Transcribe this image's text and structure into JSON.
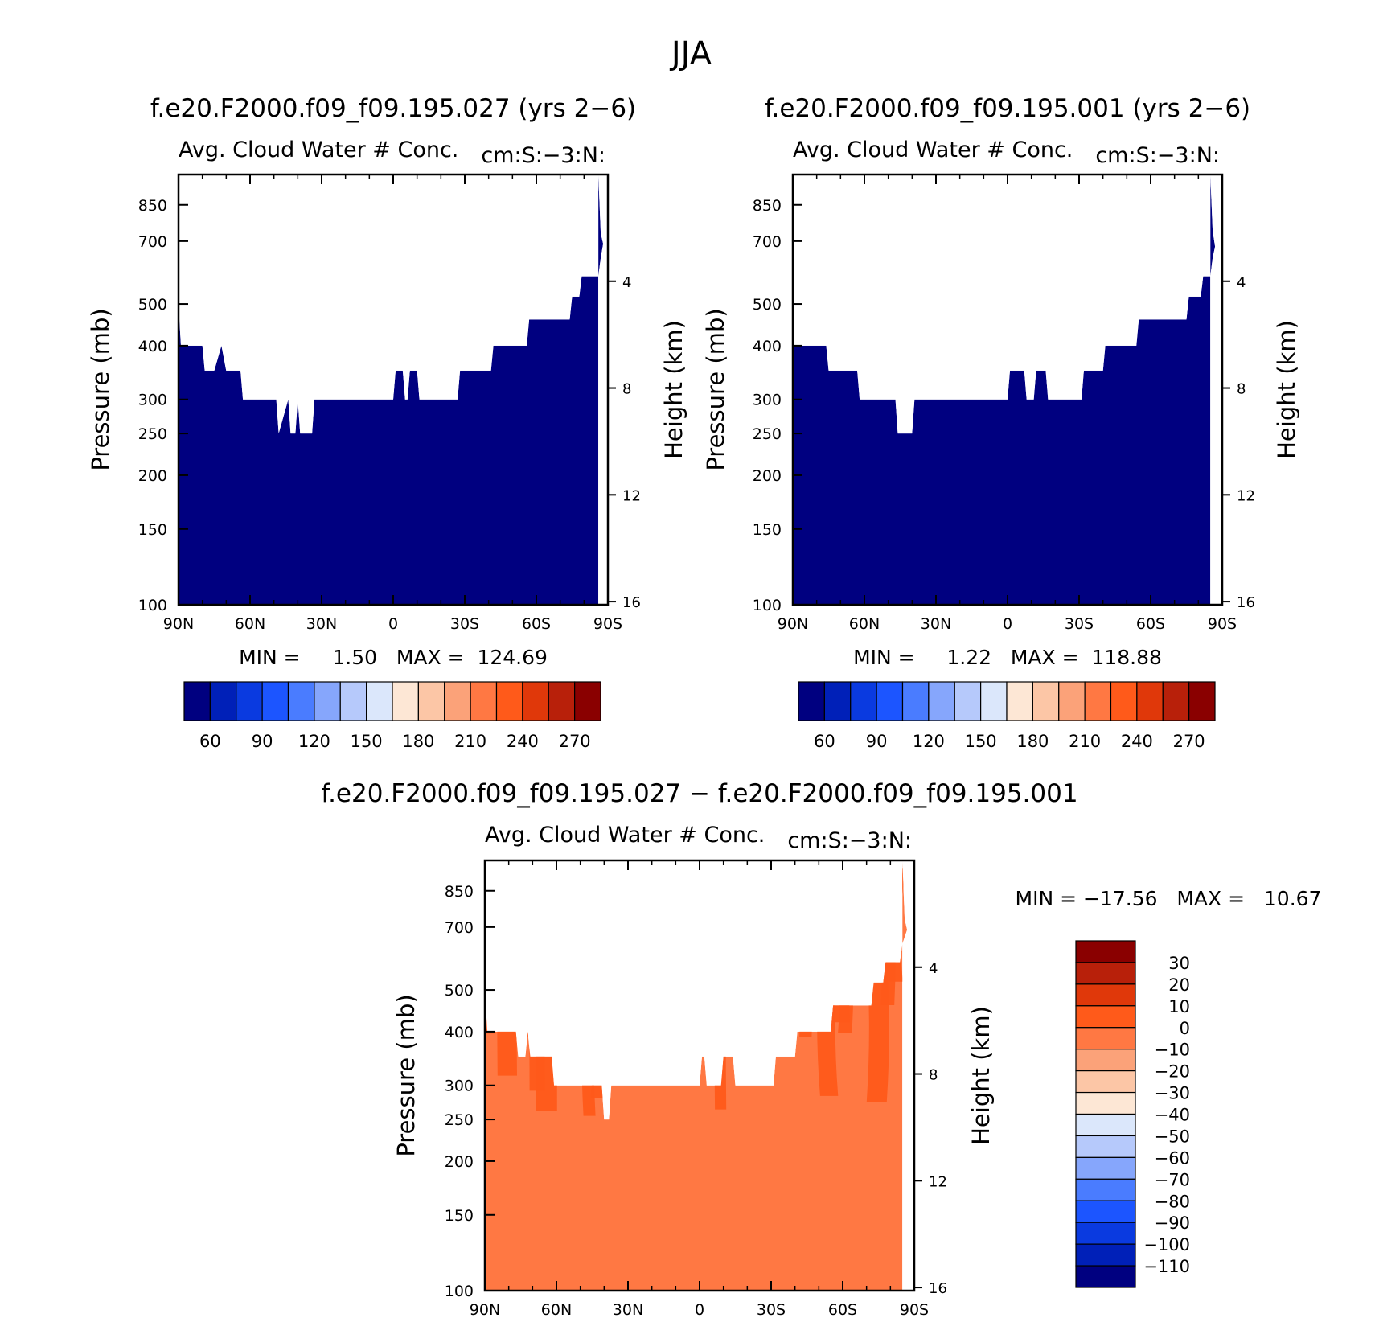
{
  "figure": {
    "title": "JJA"
  },
  "chart_data": [
    {
      "type": "heatmap",
      "title": "f.e20.F2000.f09_f09.195.027 (yrs 2−6)",
      "subtitle_left": "Avg. Cloud Water # Conc.",
      "subtitle_right": "cm:S:−3:N:",
      "ylabel": "Pressure (mb)",
      "ylabel_right": "Height (km)",
      "x_ticks": [
        "90N",
        "60N",
        "30N",
        "0",
        "30S",
        "60S",
        "90S"
      ],
      "y_ticks": [
        "100",
        "150",
        "200",
        "250",
        "300",
        "400",
        "500",
        "700",
        "850"
      ],
      "y_ticks_right": [
        "16",
        "12",
        "8",
        "4"
      ],
      "xlim": [
        90,
        -90
      ],
      "ylim": [
        1000,
        100
      ],
      "y_scale": "log",
      "stats_text": "MIN =     1.50   MAX =  124.69",
      "min": 1.5,
      "max": 124.69,
      "cloud_top_profile": [
        [
          90,
          500
        ],
        [
          89,
          400
        ],
        [
          80,
          400
        ],
        [
          79,
          350
        ],
        [
          75,
          350
        ],
        [
          72,
          400
        ],
        [
          70,
          350
        ],
        [
          64,
          350
        ],
        [
          63,
          300
        ],
        [
          49,
          300
        ],
        [
          48,
          250
        ],
        [
          44,
          300
        ],
        [
          43,
          250
        ],
        [
          41,
          250
        ],
        [
          40,
          300
        ],
        [
          39,
          250
        ],
        [
          34,
          250
        ],
        [
          33,
          300
        ],
        [
          0,
          300
        ],
        [
          -1,
          350
        ],
        [
          -4,
          350
        ],
        [
          -5,
          300
        ],
        [
          -6,
          300
        ],
        [
          -7,
          350
        ],
        [
          -10,
          350
        ],
        [
          -11,
          300
        ],
        [
          -27,
          300
        ],
        [
          -28,
          350
        ],
        [
          -41,
          350
        ],
        [
          -42,
          400
        ],
        [
          -56,
          400
        ],
        [
          -57,
          460
        ],
        [
          -74,
          460
        ],
        [
          -75,
          520
        ],
        [
          -78,
          520
        ],
        [
          -79,
          580
        ],
        [
          -86,
          580
        ],
        [
          -87,
          640
        ],
        [
          -88,
          690
        ],
        [
          -87,
          730
        ],
        [
          -86,
          1000
        ]
      ],
      "colorbar": {
        "orientation": "horizontal",
        "labels": [
          "60",
          "90",
          "120",
          "150",
          "180",
          "210",
          "240",
          "270"
        ],
        "colors": [
          "#000080",
          "#0020b8",
          "#0a3ae0",
          "#1c55ff",
          "#4a7cff",
          "#86a6fc",
          "#b6c9fb",
          "#dbe7fb",
          "#fde7d5",
          "#fcc6a6",
          "#fba279",
          "#ff7843",
          "#ff5a1a",
          "#e0380a",
          "#b8200a",
          "#8a0000"
        ]
      }
    },
    {
      "type": "heatmap",
      "title": "f.e20.F2000.f09_f09.195.001 (yrs 2−6)",
      "subtitle_left": "Avg. Cloud Water # Conc.",
      "subtitle_right": "cm:S:−3:N:",
      "ylabel": "Pressure (mb)",
      "ylabel_right": "Height (km)",
      "x_ticks": [
        "90N",
        "60N",
        "30N",
        "0",
        "30S",
        "60S",
        "90S"
      ],
      "y_ticks": [
        "100",
        "150",
        "200",
        "250",
        "300",
        "400",
        "500",
        "700",
        "850"
      ],
      "y_ticks_right": [
        "16",
        "12",
        "8",
        "4"
      ],
      "xlim": [
        90,
        -90
      ],
      "ylim": [
        1000,
        100
      ],
      "y_scale": "log",
      "stats_text": "MIN =     1.22   MAX =  118.88",
      "min": 1.22,
      "max": 118.88,
      "cloud_top_profile": [
        [
          90,
          400
        ],
        [
          76,
          400
        ],
        [
          75,
          350
        ],
        [
          63,
          350
        ],
        [
          62,
          300
        ],
        [
          47,
          300
        ],
        [
          46,
          250
        ],
        [
          40,
          250
        ],
        [
          39,
          300
        ],
        [
          0,
          300
        ],
        [
          -1,
          350
        ],
        [
          -7,
          350
        ],
        [
          -8,
          300
        ],
        [
          -11,
          300
        ],
        [
          -12,
          350
        ],
        [
          -16,
          350
        ],
        [
          -17,
          300
        ],
        [
          -31,
          300
        ],
        [
          -32,
          350
        ],
        [
          -40,
          350
        ],
        [
          -41,
          400
        ],
        [
          -54,
          400
        ],
        [
          -55,
          460
        ],
        [
          -75,
          460
        ],
        [
          -76,
          520
        ],
        [
          -81,
          520
        ],
        [
          -82,
          580
        ],
        [
          -85,
          580
        ],
        [
          -86,
          640
        ],
        [
          -87,
          680
        ],
        [
          -86,
          740
        ],
        [
          -85,
          1000
        ]
      ],
      "colorbar": {
        "orientation": "horizontal",
        "labels": [
          "60",
          "90",
          "120",
          "150",
          "180",
          "210",
          "240",
          "270"
        ],
        "colors": [
          "#000080",
          "#0020b8",
          "#0a3ae0",
          "#1c55ff",
          "#4a7cff",
          "#86a6fc",
          "#b6c9fb",
          "#dbe7fb",
          "#fde7d5",
          "#fcc6a6",
          "#fba279",
          "#ff7843",
          "#ff5a1a",
          "#e0380a",
          "#b8200a",
          "#8a0000"
        ]
      }
    },
    {
      "type": "heatmap",
      "title": "f.e20.F2000.f09_f09.195.027 − f.e20.F2000.f09_f09.195.001",
      "subtitle_left": "Avg. Cloud Water # Conc.",
      "subtitle_right": "cm:S:−3:N:",
      "ylabel": "Pressure (mb)",
      "ylabel_right": "Height (km)",
      "x_ticks": [
        "90N",
        "60N",
        "30N",
        "0",
        "30S",
        "60S",
        "90S"
      ],
      "y_ticks": [
        "100",
        "150",
        "200",
        "250",
        "300",
        "400",
        "500",
        "700",
        "850"
      ],
      "y_ticks_right": [
        "16",
        "12",
        "8",
        "4"
      ],
      "xlim": [
        90,
        -90
      ],
      "ylim": [
        1000,
        100
      ],
      "y_scale": "log",
      "stats_text": "MIN = −17.56   MAX =   10.67",
      "min": -17.56,
      "max": 10.67,
      "cloud_top_profile": [
        [
          90,
          500
        ],
        [
          89,
          400
        ],
        [
          77,
          400
        ],
        [
          76,
          350
        ],
        [
          73,
          350
        ],
        [
          72,
          400
        ],
        [
          71,
          350
        ],
        [
          62,
          350
        ],
        [
          61,
          300
        ],
        [
          41,
          300
        ],
        [
          40,
          250
        ],
        [
          38,
          250
        ],
        [
          37,
          300
        ],
        [
          0,
          300
        ],
        [
          -1,
          350
        ],
        [
          -2,
          350
        ],
        [
          -3,
          300
        ],
        [
          -9,
          300
        ],
        [
          -10,
          350
        ],
        [
          -14,
          350
        ],
        [
          -15,
          300
        ],
        [
          -31,
          300
        ],
        [
          -32,
          350
        ],
        [
          -40,
          350
        ],
        [
          -41,
          400
        ],
        [
          -55,
          400
        ],
        [
          -56,
          460
        ],
        [
          -72,
          460
        ],
        [
          -73,
          520
        ],
        [
          -77,
          520
        ],
        [
          -78,
          580
        ],
        [
          -84,
          580
        ],
        [
          -85,
          640
        ],
        [
          -87,
          690
        ],
        [
          -86,
          730
        ],
        [
          -85,
          1000
        ]
      ],
      "colorbar": {
        "orientation": "vertical",
        "labels": [
          "30",
          "20",
          "10",
          "0",
          "−10",
          "−20",
          "−30",
          "−40",
          "−50",
          "−60",
          "−70",
          "−80",
          "−90",
          "−100",
          "−110"
        ],
        "colors": [
          "#8a0000",
          "#b8200a",
          "#e0380a",
          "#ff5a1a",
          "#ff7843",
          "#fba279",
          "#fcc6a6",
          "#fde7d5",
          "#dbe7fb",
          "#b6c9fb",
          "#86a6fc",
          "#4a7cff",
          "#1c55ff",
          "#0a3ae0",
          "#0020b8",
          "#000080"
        ]
      }
    }
  ]
}
